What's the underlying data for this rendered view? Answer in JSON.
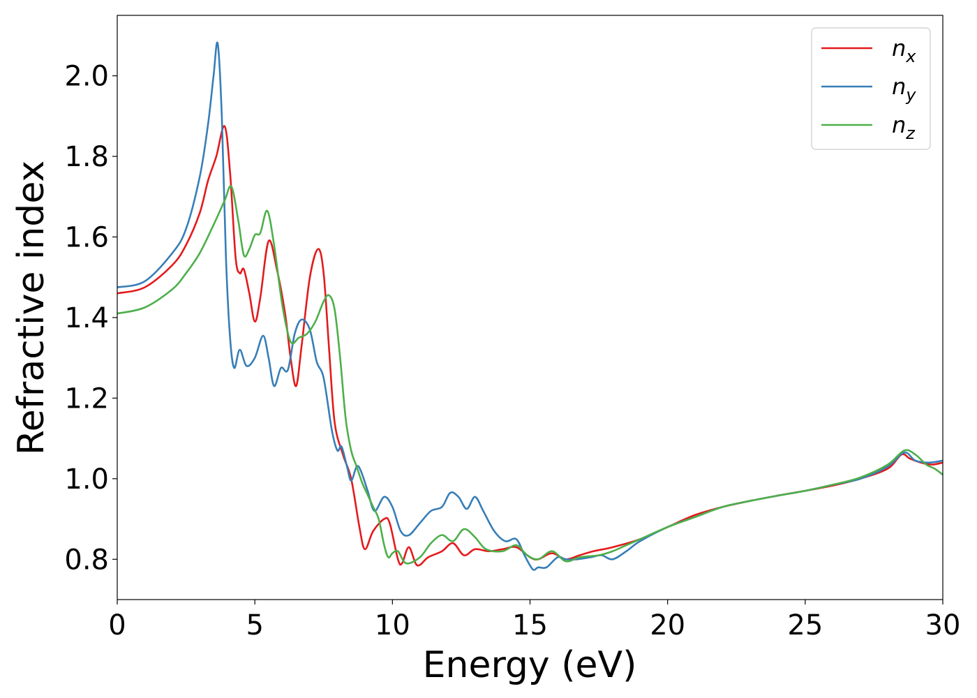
{
  "chart_data": {
    "type": "line",
    "title": "",
    "xlabel": "Energy (eV)",
    "ylabel": "Refractive index",
    "xlim": [
      0,
      30
    ],
    "ylim": [
      0.7,
      2.15
    ],
    "xticks": [
      0,
      5,
      10,
      15,
      20,
      25,
      30
    ],
    "xtick_labels": [
      "0",
      "5",
      "10",
      "15",
      "20",
      "25",
      "30"
    ],
    "yticks": [
      0.8,
      1.0,
      1.2,
      1.4,
      1.6,
      1.8,
      2.0
    ],
    "ytick_labels": [
      "0.8",
      "1.0",
      "1.2",
      "1.4",
      "1.6",
      "1.8",
      "2.0"
    ],
    "grid": false,
    "legend_position": "top-right",
    "series": [
      {
        "name": "n_x",
        "label_base": "n",
        "label_sub": "x",
        "color": "#e41a1c",
        "points": [
          [
            0,
            1.46
          ],
          [
            1,
            1.475
          ],
          [
            2,
            1.53
          ],
          [
            2.5,
            1.58
          ],
          [
            3,
            1.66
          ],
          [
            3.3,
            1.74
          ],
          [
            3.6,
            1.8
          ],
          [
            3.9,
            1.875
          ],
          [
            4.1,
            1.76
          ],
          [
            4.3,
            1.55
          ],
          [
            4.45,
            1.51
          ],
          [
            4.6,
            1.52
          ],
          [
            4.8,
            1.46
          ],
          [
            5.0,
            1.39
          ],
          [
            5.2,
            1.45
          ],
          [
            5.5,
            1.59
          ],
          [
            5.8,
            1.52
          ],
          [
            6.1,
            1.41
          ],
          [
            6.3,
            1.3
          ],
          [
            6.5,
            1.23
          ],
          [
            6.7,
            1.33
          ],
          [
            7.0,
            1.5
          ],
          [
            7.3,
            1.57
          ],
          [
            7.5,
            1.51
          ],
          [
            7.7,
            1.32
          ],
          [
            7.9,
            1.14
          ],
          [
            8.2,
            1.06
          ],
          [
            8.5,
            1.0
          ],
          [
            8.8,
            0.88
          ],
          [
            9.0,
            0.825
          ],
          [
            9.3,
            0.87
          ],
          [
            9.7,
            0.9
          ],
          [
            9.9,
            0.89
          ],
          [
            10.2,
            0.8
          ],
          [
            10.35,
            0.79
          ],
          [
            10.6,
            0.83
          ],
          [
            10.9,
            0.785
          ],
          [
            11.3,
            0.805
          ],
          [
            11.8,
            0.82
          ],
          [
            12.2,
            0.84
          ],
          [
            12.6,
            0.81
          ],
          [
            13.0,
            0.825
          ],
          [
            13.5,
            0.82
          ],
          [
            14.0,
            0.825
          ],
          [
            14.5,
            0.83
          ],
          [
            15.0,
            0.805
          ],
          [
            15.3,
            0.8
          ],
          [
            15.8,
            0.815
          ],
          [
            16.3,
            0.8
          ],
          [
            16.8,
            0.81
          ],
          [
            17.3,
            0.82
          ],
          [
            18,
            0.83
          ],
          [
            19,
            0.85
          ],
          [
            20,
            0.88
          ],
          [
            21,
            0.91
          ],
          [
            22,
            0.93
          ],
          [
            23,
            0.945
          ],
          [
            24,
            0.958
          ],
          [
            25,
            0.97
          ],
          [
            26,
            0.983
          ],
          [
            27,
            1.0
          ],
          [
            28,
            1.025
          ],
          [
            28.5,
            1.06
          ],
          [
            28.8,
            1.05
          ],
          [
            29.2,
            1.04
          ],
          [
            29.6,
            1.035
          ],
          [
            30,
            1.04
          ]
        ]
      },
      {
        "name": "n_y",
        "label_base": "n",
        "label_sub": "y",
        "color": "#377eb8",
        "points": [
          [
            0,
            1.475
          ],
          [
            1,
            1.49
          ],
          [
            2,
            1.56
          ],
          [
            2.5,
            1.62
          ],
          [
            3,
            1.75
          ],
          [
            3.3,
            1.88
          ],
          [
            3.5,
            2.0
          ],
          [
            3.65,
            2.08
          ],
          [
            3.8,
            1.9
          ],
          [
            3.95,
            1.55
          ],
          [
            4.1,
            1.35
          ],
          [
            4.25,
            1.275
          ],
          [
            4.45,
            1.32
          ],
          [
            4.7,
            1.28
          ],
          [
            5.0,
            1.3
          ],
          [
            5.3,
            1.355
          ],
          [
            5.5,
            1.3
          ],
          [
            5.7,
            1.23
          ],
          [
            5.95,
            1.275
          ],
          [
            6.2,
            1.27
          ],
          [
            6.45,
            1.36
          ],
          [
            6.7,
            1.395
          ],
          [
            7.0,
            1.37
          ],
          [
            7.25,
            1.29
          ],
          [
            7.5,
            1.25
          ],
          [
            7.8,
            1.12
          ],
          [
            8.0,
            1.07
          ],
          [
            8.15,
            1.08
          ],
          [
            8.35,
            1.03
          ],
          [
            8.5,
            0.995
          ],
          [
            8.7,
            1.03
          ],
          [
            8.85,
            1.02
          ],
          [
            9.1,
            0.97
          ],
          [
            9.35,
            0.92
          ],
          [
            9.7,
            0.955
          ],
          [
            10.0,
            0.93
          ],
          [
            10.3,
            0.87
          ],
          [
            10.6,
            0.86
          ],
          [
            11.0,
            0.89
          ],
          [
            11.4,
            0.92
          ],
          [
            11.8,
            0.93
          ],
          [
            12.1,
            0.965
          ],
          [
            12.4,
            0.955
          ],
          [
            12.7,
            0.925
          ],
          [
            13.0,
            0.955
          ],
          [
            13.3,
            0.92
          ],
          [
            13.7,
            0.87
          ],
          [
            14.1,
            0.845
          ],
          [
            14.5,
            0.85
          ],
          [
            14.8,
            0.81
          ],
          [
            15.1,
            0.775
          ],
          [
            15.3,
            0.78
          ],
          [
            15.6,
            0.78
          ],
          [
            16.0,
            0.805
          ],
          [
            16.3,
            0.8
          ],
          [
            16.7,
            0.8
          ],
          [
            17.2,
            0.805
          ],
          [
            17.6,
            0.81
          ],
          [
            18.0,
            0.8
          ],
          [
            18.5,
            0.82
          ],
          [
            19,
            0.845
          ],
          [
            20,
            0.88
          ],
          [
            21,
            0.905
          ],
          [
            22,
            0.93
          ],
          [
            23,
            0.945
          ],
          [
            24,
            0.958
          ],
          [
            25,
            0.97
          ],
          [
            26,
            0.985
          ],
          [
            27,
            1.0
          ],
          [
            28,
            1.03
          ],
          [
            28.6,
            1.065
          ],
          [
            29.0,
            1.045
          ],
          [
            29.5,
            1.04
          ],
          [
            30,
            1.045
          ]
        ]
      },
      {
        "name": "n_z",
        "label_base": "n",
        "label_sub": "z",
        "color": "#4daf4a",
        "points": [
          [
            0,
            1.41
          ],
          [
            1,
            1.425
          ],
          [
            2,
            1.47
          ],
          [
            2.5,
            1.51
          ],
          [
            3,
            1.56
          ],
          [
            3.5,
            1.63
          ],
          [
            3.9,
            1.69
          ],
          [
            4.15,
            1.725
          ],
          [
            4.4,
            1.64
          ],
          [
            4.6,
            1.555
          ],
          [
            4.8,
            1.57
          ],
          [
            5.0,
            1.605
          ],
          [
            5.2,
            1.61
          ],
          [
            5.45,
            1.665
          ],
          [
            5.7,
            1.58
          ],
          [
            6.0,
            1.43
          ],
          [
            6.3,
            1.34
          ],
          [
            6.6,
            1.35
          ],
          [
            6.9,
            1.36
          ],
          [
            7.2,
            1.39
          ],
          [
            7.5,
            1.44
          ],
          [
            7.7,
            1.455
          ],
          [
            7.9,
            1.42
          ],
          [
            8.1,
            1.3
          ],
          [
            8.3,
            1.15
          ],
          [
            8.5,
            1.07
          ],
          [
            8.7,
            1.03
          ],
          [
            8.9,
            0.99
          ],
          [
            9.1,
            0.96
          ],
          [
            9.3,
            0.93
          ],
          [
            9.5,
            0.9
          ],
          [
            9.7,
            0.835
          ],
          [
            9.85,
            0.805
          ],
          [
            10.0,
            0.815
          ],
          [
            10.2,
            0.82
          ],
          [
            10.5,
            0.79
          ],
          [
            11.0,
            0.805
          ],
          [
            11.4,
            0.84
          ],
          [
            11.8,
            0.86
          ],
          [
            12.2,
            0.845
          ],
          [
            12.6,
            0.875
          ],
          [
            13.0,
            0.855
          ],
          [
            13.4,
            0.825
          ],
          [
            14.0,
            0.82
          ],
          [
            14.5,
            0.835
          ],
          [
            14.9,
            0.81
          ],
          [
            15.3,
            0.8
          ],
          [
            15.8,
            0.82
          ],
          [
            16.3,
            0.795
          ],
          [
            16.8,
            0.805
          ],
          [
            17.5,
            0.81
          ],
          [
            18,
            0.82
          ],
          [
            18.5,
            0.835
          ],
          [
            19,
            0.85
          ],
          [
            20,
            0.88
          ],
          [
            21,
            0.905
          ],
          [
            22,
            0.93
          ],
          [
            23,
            0.945
          ],
          [
            24,
            0.958
          ],
          [
            25,
            0.97
          ],
          [
            26,
            0.985
          ],
          [
            27,
            1.003
          ],
          [
            28,
            1.035
          ],
          [
            28.6,
            1.07
          ],
          [
            29.0,
            1.06
          ],
          [
            29.4,
            1.035
          ],
          [
            29.7,
            1.025
          ],
          [
            30,
            1.01
          ]
        ]
      }
    ]
  }
}
